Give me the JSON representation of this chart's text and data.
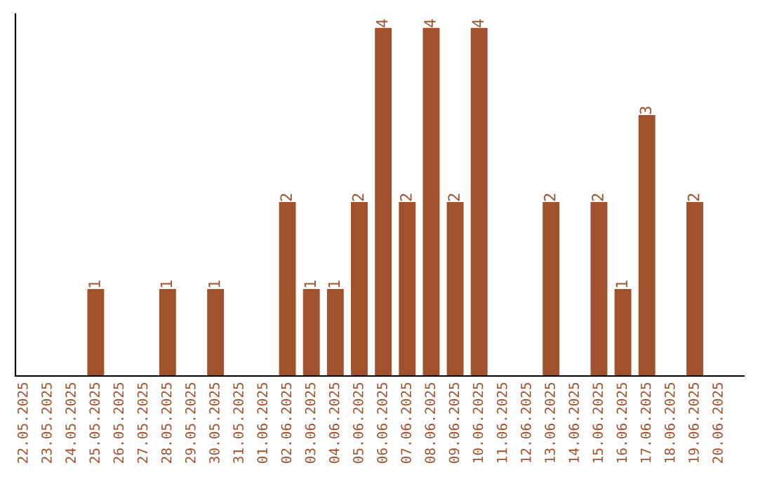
{
  "chart_data": {
    "type": "bar",
    "categories": [
      "22.05.2025",
      "23.05.2025",
      "24.05.2025",
      "25.05.2025",
      "26.05.2025",
      "27.05.2025",
      "28.05.2025",
      "29.05.2025",
      "30.05.2025",
      "31.05.2025",
      "01.06.2025",
      "02.06.2025",
      "03.06.2025",
      "04.06.2025",
      "05.06.2025",
      "06.06.2025",
      "07.06.2025",
      "08.06.2025",
      "09.06.2025",
      "10.06.2025",
      "11.06.2025",
      "12.06.2025",
      "13.06.2025",
      "14.06.2025",
      "15.06.2025",
      "16.06.2025",
      "17.06.2025",
      "18.06.2025",
      "19.06.2025",
      "20.06.2025"
    ],
    "values": [
      0,
      0,
      0,
      1,
      0,
      0,
      1,
      0,
      1,
      0,
      0,
      2,
      1,
      1,
      2,
      4,
      2,
      4,
      2,
      4,
      0,
      0,
      2,
      0,
      2,
      1,
      3,
      0,
      2,
      0
    ],
    "value_labels": [
      null,
      null,
      null,
      "1",
      null,
      null,
      "1",
      null,
      "1",
      null,
      null,
      "2",
      "1",
      "1",
      "2",
      "4",
      "2",
      "4",
      "2",
      "4",
      null,
      null,
      "2",
      null,
      "2",
      "1",
      "3",
      null,
      "2",
      null
    ],
    "color": "#a0522d",
    "ylim": [
      0,
      4.16
    ],
    "tick_labels": "x",
    "grid": false,
    "legend": false
  }
}
